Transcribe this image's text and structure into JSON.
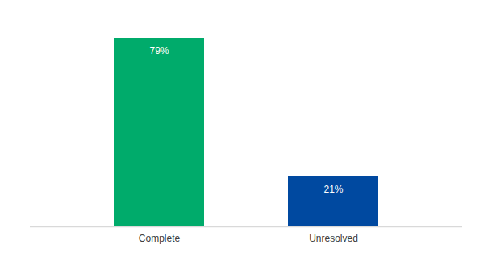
{
  "chart_data": {
    "type": "bar",
    "categories": [
      "Complete",
      "Unresolved"
    ],
    "values": [
      79,
      21
    ],
    "value_labels": [
      "79%",
      "21%"
    ],
    "colors": [
      "#00ab6b",
      "#0049a0"
    ],
    "data_labels": true,
    "tick_labels": "x",
    "grid": false
  }
}
